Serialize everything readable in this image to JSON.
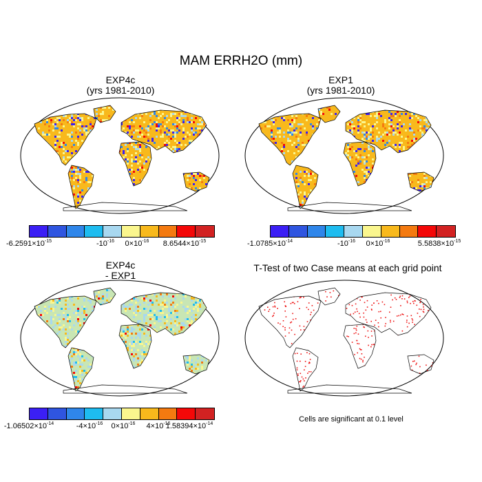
{
  "figure": {
    "title": "MAM ERRH2O (mm)"
  },
  "colors": {
    "scale": [
      "#3b1ff5",
      "#2f55e0",
      "#2f86ea",
      "#1ebcf0",
      "#a8d8f0",
      "#faf68e",
      "#f8b91c",
      "#f47a10",
      "#f40808",
      "#d22222"
    ],
    "significance": "#ee1111",
    "coast": "#000000"
  },
  "panels": [
    {
      "id": "exp4c",
      "title_line1": "EXP4c",
      "title_line2": "(yrs 1981-2010)",
      "colorbar_labels": [
        {
          "base": "-6.2591×10",
          "exp": "-15"
        },
        {
          "base": "-10",
          "exp": "-16"
        },
        {
          "base": "0×10",
          "exp": "-16"
        },
        {
          "base": "8.6544×10",
          "exp": "-15"
        }
      ]
    },
    {
      "id": "exp1",
      "title_line1": "EXP1",
      "title_line2": "(yrs 1981-2010)",
      "colorbar_labels": [
        {
          "base": "-1.0785×10",
          "exp": "-14"
        },
        {
          "base": "-10",
          "exp": "-16"
        },
        {
          "base": "0×10",
          "exp": "-16"
        },
        {
          "base": "5.5838×10",
          "exp": "-15"
        }
      ]
    },
    {
      "id": "diff",
      "title_line1": "EXP4c",
      "title_line2": "- EXP1",
      "colorbar_labels": [
        {
          "base": "-1.06502×10",
          "exp": "-14"
        },
        {
          "base": "-4×10",
          "exp": "-16"
        },
        {
          "base": "0×10",
          "exp": "-16"
        },
        {
          "base": "4×10",
          "exp": "-16"
        },
        {
          "base": "1.58394×10",
          "exp": "-14"
        }
      ]
    },
    {
      "id": "ttest",
      "title_line1": "T-Test of two Case means at each grid point",
      "note": "Cells are significant at 0.1 level"
    }
  ]
}
